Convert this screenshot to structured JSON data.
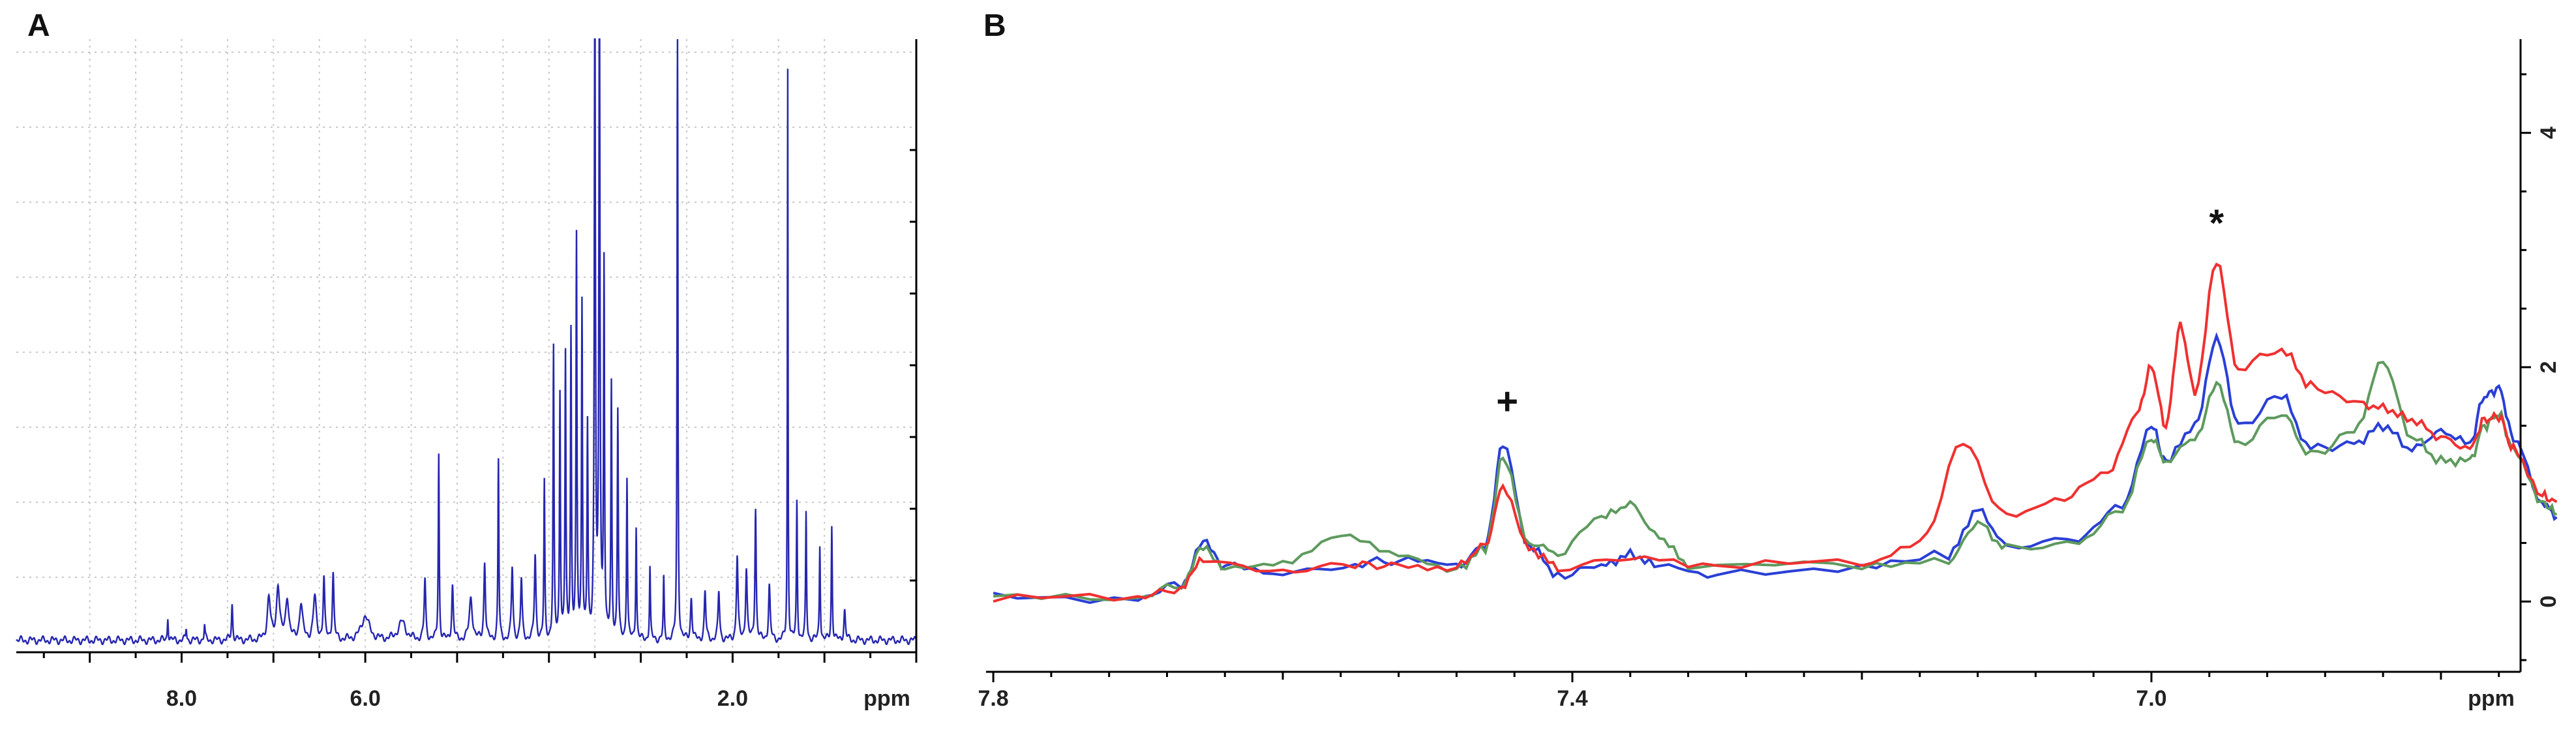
{
  "chart_data": [
    {
      "panel": "A",
      "type": "line",
      "xlabel": "ppm",
      "x_axis_reversed": true,
      "xlim": [
        9.8,
        0.0
      ],
      "ylim": [
        -0.02,
        1.0
      ],
      "x_ticks": [
        8.0,
        6.0,
        2.0
      ],
      "x_tick_labels": [
        "8.0",
        "6.0",
        "2.0"
      ],
      "grid": true,
      "series": [
        {
          "color": "#2626b0",
          "baseline": 0.0,
          "peaks": [
            [
              8.15,
              0.04,
              0.006
            ],
            [
              7.95,
              0.02,
              0.006
            ],
            [
              7.75,
              0.025,
              0.006
            ],
            [
              7.45,
              0.06,
              0.008
            ],
            [
              7.05,
              0.07,
              0.02
            ],
            [
              6.95,
              0.09,
              0.02
            ],
            [
              6.85,
              0.07,
              0.02
            ],
            [
              6.7,
              0.06,
              0.02
            ],
            [
              6.55,
              0.07,
              0.02
            ],
            [
              6.45,
              0.1,
              0.01
            ],
            [
              6.35,
              0.11,
              0.01
            ],
            [
              6.0,
              0.04,
              0.05
            ],
            [
              5.6,
              0.03,
              0.05
            ],
            [
              5.35,
              0.1,
              0.01
            ],
            [
              5.2,
              0.31,
              0.006
            ],
            [
              5.05,
              0.09,
              0.01
            ],
            [
              4.85,
              0.07,
              0.02
            ],
            [
              4.7,
              0.13,
              0.01
            ],
            [
              4.55,
              0.3,
              0.006
            ],
            [
              4.4,
              0.12,
              0.01
            ],
            [
              4.3,
              0.1,
              0.01
            ],
            [
              4.15,
              0.14,
              0.01
            ],
            [
              4.05,
              0.26,
              0.006
            ],
            [
              3.95,
              0.48,
              0.006
            ],
            [
              3.88,
              0.41,
              0.006
            ],
            [
              3.82,
              0.47,
              0.006
            ],
            [
              3.76,
              0.51,
              0.006
            ],
            [
              3.7,
              0.66,
              0.006
            ],
            [
              3.64,
              0.56,
              0.006
            ],
            [
              3.58,
              0.35,
              0.006
            ],
            [
              3.5,
              1.1,
              0.007
            ],
            [
              3.45,
              1.1,
              0.007
            ],
            [
              3.4,
              0.62,
              0.006
            ],
            [
              3.32,
              0.42,
              0.006
            ],
            [
              3.25,
              0.38,
              0.006
            ],
            [
              3.15,
              0.27,
              0.006
            ],
            [
              3.05,
              0.19,
              0.006
            ],
            [
              2.9,
              0.12,
              0.006
            ],
            [
              2.75,
              0.1,
              0.006
            ],
            [
              2.6,
              1.1,
              0.005
            ],
            [
              2.45,
              0.07,
              0.01
            ],
            [
              2.3,
              0.08,
              0.01
            ],
            [
              2.15,
              0.08,
              0.01
            ],
            [
              1.95,
              0.14,
              0.01
            ],
            [
              1.85,
              0.12,
              0.01
            ],
            [
              1.75,
              0.22,
              0.008
            ],
            [
              1.6,
              0.09,
              0.01
            ],
            [
              1.4,
              0.95,
              0.004
            ],
            [
              1.3,
              0.23,
              0.006
            ],
            [
              1.2,
              0.21,
              0.006
            ],
            [
              1.05,
              0.16,
              0.006
            ],
            [
              0.92,
              0.19,
              0.006
            ],
            [
              0.78,
              0.05,
              0.01
            ]
          ]
        }
      ]
    },
    {
      "panel": "B",
      "type": "line",
      "xlabel": "ppm",
      "x_axis_reversed": true,
      "xlim": [
        7.805,
        6.745
      ],
      "ylim": [
        -0.6,
        4.8
      ],
      "x_ticks": [
        7.8,
        7.4,
        7.0
      ],
      "x_tick_labels": [
        "7.8",
        "7.4",
        "7.0"
      ],
      "y_ticks": [
        0,
        2,
        4
      ],
      "y_tick_labels": [
        "0",
        "2",
        "4"
      ],
      "y_axis_side": "right",
      "annotations": [
        {
          "text": "+",
          "x": 7.445,
          "y": 1.6
        },
        {
          "text": "*",
          "x": 6.955,
          "y": 3.12
        }
      ],
      "series": [
        {
          "color": "#2a3fd6",
          "points": [
            [
              7.8,
              0.03
            ],
            [
              7.7,
              0.03
            ],
            [
              7.67,
              0.15
            ],
            [
              7.655,
              0.5
            ],
            [
              7.64,
              0.3
            ],
            [
              7.6,
              0.24
            ],
            [
              7.55,
              0.33
            ],
            [
              7.52,
              0.34
            ],
            [
              7.48,
              0.3
            ],
            [
              7.46,
              0.48
            ],
            [
              7.448,
              1.33
            ],
            [
              7.43,
              0.48
            ],
            [
              7.41,
              0.23
            ],
            [
              7.38,
              0.3
            ],
            [
              7.36,
              0.4
            ],
            [
              7.34,
              0.3
            ],
            [
              7.3,
              0.23
            ],
            [
              7.2,
              0.3
            ],
            [
              7.14,
              0.4
            ],
            [
              7.12,
              0.78
            ],
            [
              7.1,
              0.48
            ],
            [
              7.05,
              0.55
            ],
            [
              7.02,
              0.82
            ],
            [
              7.0,
              1.5
            ],
            [
              6.99,
              1.2
            ],
            [
              6.97,
              1.5
            ],
            [
              6.955,
              2.25
            ],
            [
              6.94,
              1.5
            ],
            [
              6.91,
              1.75
            ],
            [
              6.89,
              1.3
            ],
            [
              6.86,
              1.35
            ],
            [
              6.84,
              1.5
            ],
            [
              6.82,
              1.3
            ],
            [
              6.8,
              1.45
            ],
            [
              6.78,
              1.35
            ],
            [
              6.77,
              1.75
            ],
            [
              6.76,
              1.82
            ],
            [
              6.75,
              1.4
            ],
            [
              6.73,
              0.85
            ],
            [
              6.72,
              0.72
            ]
          ]
        },
        {
          "color": "#5e9a5e",
          "points": [
            [
              7.8,
              0.03
            ],
            [
              7.7,
              0.03
            ],
            [
              7.67,
              0.15
            ],
            [
              7.655,
              0.45
            ],
            [
              7.64,
              0.3
            ],
            [
              7.6,
              0.35
            ],
            [
              7.56,
              0.55
            ],
            [
              7.52,
              0.38
            ],
            [
              7.48,
              0.28
            ],
            [
              7.46,
              0.45
            ],
            [
              7.448,
              1.22
            ],
            [
              7.43,
              0.5
            ],
            [
              7.41,
              0.42
            ],
            [
              7.38,
              0.72
            ],
            [
              7.36,
              0.83
            ],
            [
              7.34,
              0.55
            ],
            [
              7.32,
              0.32
            ],
            [
              7.2,
              0.3
            ],
            [
              7.14,
              0.35
            ],
            [
              7.12,
              0.67
            ],
            [
              7.1,
              0.45
            ],
            [
              7.05,
              0.5
            ],
            [
              7.02,
              0.8
            ],
            [
              7.0,
              1.4
            ],
            [
              6.99,
              1.2
            ],
            [
              6.97,
              1.4
            ],
            [
              6.955,
              1.85
            ],
            [
              6.94,
              1.35
            ],
            [
              6.91,
              1.6
            ],
            [
              6.89,
              1.25
            ],
            [
              6.86,
              1.45
            ],
            [
              6.84,
              2.05
            ],
            [
              6.82,
              1.4
            ],
            [
              6.8,
              1.2
            ],
            [
              6.78,
              1.2
            ],
            [
              6.77,
              1.5
            ],
            [
              6.76,
              1.6
            ],
            [
              6.75,
              1.3
            ],
            [
              6.73,
              0.85
            ],
            [
              6.72,
              0.75
            ]
          ]
        },
        {
          "color": "#f03030",
          "points": [
            [
              7.8,
              0.03
            ],
            [
              7.7,
              0.03
            ],
            [
              7.67,
              0.12
            ],
            [
              7.655,
              0.35
            ],
            [
              7.6,
              0.25
            ],
            [
              7.55,
              0.3
            ],
            [
              7.52,
              0.32
            ],
            [
              7.48,
              0.3
            ],
            [
              7.46,
              0.48
            ],
            [
              7.448,
              0.98
            ],
            [
              7.43,
              0.45
            ],
            [
              7.41,
              0.3
            ],
            [
              7.36,
              0.38
            ],
            [
              7.3,
              0.3
            ],
            [
              7.2,
              0.34
            ],
            [
              7.16,
              0.5
            ],
            [
              7.13,
              1.35
            ],
            [
              7.1,
              0.72
            ],
            [
              7.06,
              0.9
            ],
            [
              7.03,
              1.1
            ],
            [
              7.01,
              1.6
            ],
            [
              7.0,
              2.0
            ],
            [
              6.99,
              1.5
            ],
            [
              6.98,
              2.35
            ],
            [
              6.97,
              1.8
            ],
            [
              6.955,
              2.88
            ],
            [
              6.94,
              2.0
            ],
            [
              6.91,
              2.15
            ],
            [
              6.89,
              1.85
            ],
            [
              6.86,
              1.7
            ],
            [
              6.84,
              1.65
            ],
            [
              6.82,
              1.55
            ],
            [
              6.8,
              1.4
            ],
            [
              6.78,
              1.3
            ],
            [
              6.77,
              1.55
            ],
            [
              6.76,
              1.58
            ],
            [
              6.75,
              1.3
            ],
            [
              6.73,
              0.9
            ],
            [
              6.72,
              0.85
            ]
          ]
        }
      ]
    }
  ]
}
